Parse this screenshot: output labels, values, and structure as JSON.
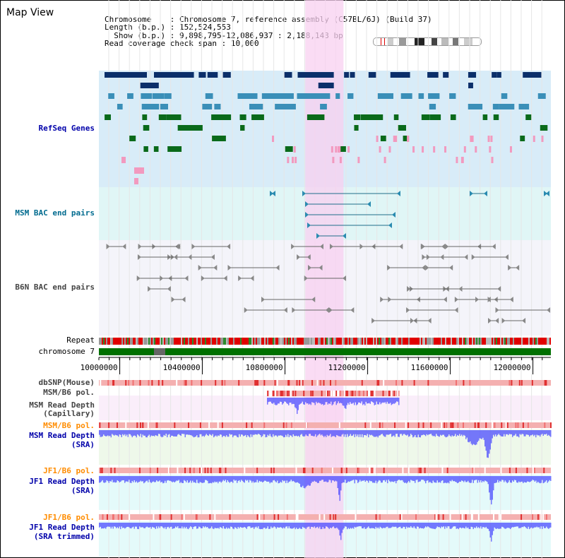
{
  "page": {
    "title": "Map View"
  },
  "info": {
    "chromosome_label": "Chromosome",
    "chromosome_value": "Chromosome 7, reference assembly (C57BL/6J) (Build 37)",
    "length_label": "Length (b.p.)",
    "length_value": "152,524,553",
    "show_label": "Show (b.p.)",
    "show_value": "9,898,795-12,086,937 : 2,188,143 bp",
    "coverage_label": "Read coverage check span",
    "coverage_value": "10,000"
  },
  "tracks": {
    "refseq": "RefSeq Genes",
    "msm_bac": "MSM BAC end pairs",
    "b6n_bac": "B6N BAC end pairs",
    "repeat": "Repeat",
    "chromosome": "chromosome 7",
    "dbsnp": "dbSNP(Mouse)",
    "msm_b6_pol_1": "MSM/B6 pol.",
    "msm_depth_cap": "MSM Read Depth",
    "msm_depth_cap_sub": "(Capillary)",
    "msm_b6_pol_2": "MSM/B6 pol.",
    "msm_depth_sra": "MSM Read Depth",
    "msm_depth_sra_sub": "(SRA)",
    "jf1_b6_pol_1": "JF1/B6 pol.",
    "jf1_depth_sra": "JF1 Read Depth",
    "jf1_depth_sra_sub": "(SRA)",
    "jf1_b6_pol_2": "JF1/B6 pol.",
    "jf1_depth_trim": "JF1 Read Depth",
    "jf1_depth_trim_sub": "(SRA trimmed)"
  },
  "axis": {
    "range": [
      9898795,
      12086937
    ],
    "ticks": [
      "10000000",
      "10400000",
      "10800000",
      "11200000",
      "11600000",
      "12000000"
    ]
  },
  "highlight": {
    "start": 10898000,
    "end": 11083000
  },
  "colors": {
    "refseq_bg": "#d8ecf8",
    "msm_bg": "#e0f6f6",
    "b6n_bg": "#f4f4fa",
    "pol_track": "#f4b0b0",
    "depth_blue": "#4040ff",
    "highlight": "#f8d0f0",
    "chrom_green": "#007000",
    "gene_dark": "#0b2f6a",
    "gene_mid": "#3a8fb8",
    "gene_green": "#0a6a1a",
    "gene_pink": "#f29abf"
  }
}
